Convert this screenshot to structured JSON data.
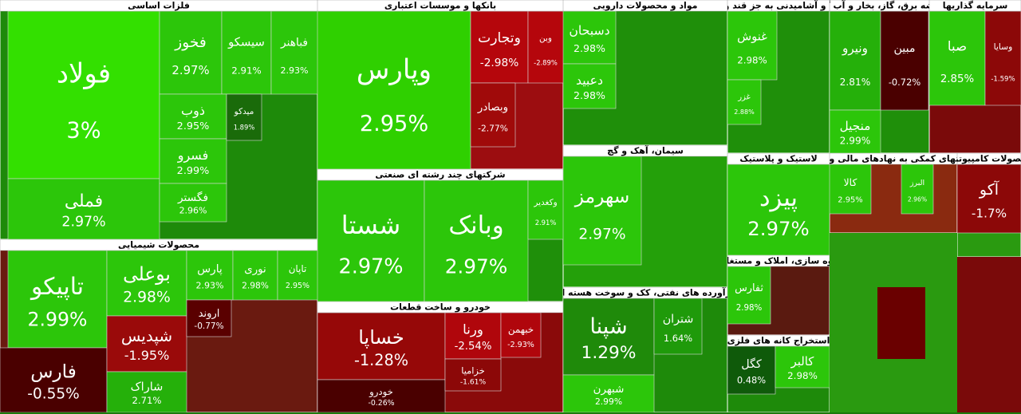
{
  "chart_data": {
    "type": "treemap",
    "sectors": [
      {
        "name": "فلزات اساسی",
        "tiles": [
          {
            "label": "فولاد",
            "value": 3,
            "value_label": "3%",
            "color": "#33e000"
          },
          {
            "label": "فملی",
            "value": 2.97,
            "value_label": "2.97%",
            "color": "#2cc60a"
          },
          {
            "label": "فخوز",
            "value": 2.97,
            "value_label": "2.97%",
            "color": "#2cc60a"
          },
          {
            "label": "سیسکو",
            "value": 2.91,
            "value_label": "2.91%",
            "color": "#2cc60a"
          },
          {
            "label": "فباهنر",
            "value": 2.93,
            "value_label": "2.93%",
            "color": "#2cc60a"
          },
          {
            "label": "ذوب",
            "value": 2.95,
            "value_label": "2.95%",
            "color": "#2cc60a"
          },
          {
            "label": "فسرو",
            "value": 2.99,
            "value_label": "2.99%",
            "color": "#2cc60a"
          },
          {
            "label": "فگستر",
            "value": 2.96,
            "value_label": "2.96%",
            "color": "#2cc60a"
          },
          {
            "label": "میدکو",
            "value": 1.89,
            "value_label": "1.89%",
            "color": "#1a6b0a"
          }
        ]
      },
      {
        "name": "محصولات شیمیایی",
        "tiles": [
          {
            "label": "تاپیکو",
            "value": 2.99,
            "value_label": "2.99%",
            "color": "#2cc60a"
          },
          {
            "label": "فارس",
            "value": -0.55,
            "value_label": "-0.55%",
            "color": "#4a0000"
          },
          {
            "label": "بوعلی",
            "value": 2.98,
            "value_label": "2.98%",
            "color": "#2cc60a"
          },
          {
            "label": "شپدیس",
            "value": -1.95,
            "value_label": "-1.95%",
            "color": "#9a0a0a"
          },
          {
            "label": "شاراک",
            "value": 2.71,
            "value_label": "2.71%",
            "color": "#25b00a"
          },
          {
            "label": "پارس",
            "value": 2.93,
            "value_label": "2.93%",
            "color": "#2cc60a"
          },
          {
            "label": "نوری",
            "value": 2.98,
            "value_label": "2.98%",
            "color": "#2cc60a"
          },
          {
            "label": "تاپان",
            "value": 2.95,
            "value_label": "2.95%",
            "color": "#2cc60a"
          },
          {
            "label": "اروند",
            "value": -0.77,
            "value_label": "-0.77%",
            "color": "#5a0000"
          }
        ]
      },
      {
        "name": "بانکها و موسسات اعتباری",
        "tiles": [
          {
            "label": "وپارس",
            "value": 2.95,
            "value_label": "2.95%",
            "color": "#2fd000"
          },
          {
            "label": "وتجارت",
            "value": -2.98,
            "value_label": "-2.98%",
            "color": "#b5060c"
          },
          {
            "label": "وبن",
            "value": -2.89,
            "value_label": "-2.89%",
            "color": "#b5060c"
          },
          {
            "label": "وبصادر",
            "value": -2.77,
            "value_label": "-2.77%",
            "color": "#a00a0a"
          }
        ]
      },
      {
        "name": "شرکتهای چند رشته ای صنعتی",
        "tiles": [
          {
            "label": "شستا",
            "value": 2.97,
            "value_label": "2.97%",
            "color": "#2cc60a"
          },
          {
            "label": "وبانک",
            "value": 2.97,
            "value_label": "2.97%",
            "color": "#2cc60a"
          },
          {
            "label": "وکغدیر",
            "value": 2.91,
            "value_label": "2.91%",
            "color": "#2cc60a"
          }
        ]
      },
      {
        "name": "خودرو و ساخت قطعات",
        "tiles": [
          {
            "label": "خساپا",
            "value": -1.28,
            "value_label": "-1.28%",
            "color": "#960808"
          },
          {
            "label": "خودرو",
            "value": -0.26,
            "value_label": "-0.26%",
            "color": "#4a0000"
          },
          {
            "label": "ورنا",
            "value": -2.54,
            "value_label": "-2.54%",
            "color": "#b0060c"
          },
          {
            "label": "خبهمن",
            "value": -2.93,
            "value_label": "-2.93%",
            "color": "#b0060c"
          },
          {
            "label": "خزامیا",
            "value": -1.61,
            "value_label": "-1.61%",
            "color": "#8c0808"
          }
        ]
      },
      {
        "name": "مواد و محصولات دارویی",
        "tiles": [
          {
            "label": "دسبحان",
            "value": 2.98,
            "value_label": "2.98%",
            "color": "#2cc60a"
          },
          {
            "label": "دعبید",
            "value": 2.98,
            "value_label": "2.98%",
            "color": "#2cc60a"
          }
        ]
      },
      {
        "name": "سیمان، آهک و گچ",
        "tiles": [
          {
            "label": "سهرمز",
            "value": 2.97,
            "value_label": "2.97%",
            "color": "#2cc60a"
          }
        ]
      },
      {
        "name": "فرآورده های نفتی، کک و سوخت هسته ای",
        "tiles": [
          {
            "label": "شپنا",
            "value": 1.29,
            "value_label": "1.29%",
            "color": "#1f8a0a"
          },
          {
            "label": "شبهرن",
            "value": 2.99,
            "value_label": "2.99%",
            "color": "#2cc60a"
          },
          {
            "label": "شتران",
            "value": 1.64,
            "value_label": "1.64%",
            "color": "#1f9a0a"
          }
        ]
      },
      {
        "name": "غذایی و آشامیدنی به جز قند و شکر",
        "tiles": [
          {
            "label": "غنوش",
            "value": 2.98,
            "value_label": "2.98%",
            "color": "#2cc60a"
          },
          {
            "label": "غزر",
            "value": 2.88,
            "value_label": "2.88%",
            "color": "#2cc60a"
          }
        ]
      },
      {
        "name": "لاستیک و پلاستیک",
        "tiles": [
          {
            "label": "پیزد",
            "value": 2.97,
            "value_label": "2.97%",
            "color": "#2cc60a"
          }
        ]
      },
      {
        "name": "انبوه سازی، املاک و مستغلات",
        "tiles": [
          {
            "label": "ثفارس",
            "value": 2.98,
            "value_label": "2.98%",
            "color": "#2cc60a"
          }
        ]
      },
      {
        "name": "استخراج کانه های فلزی",
        "tiles": [
          {
            "label": "کگل",
            "value": 0.48,
            "value_label": "0.48%",
            "color": "#0f5a0a"
          },
          {
            "label": "کالبر",
            "value": 2.98,
            "value_label": "2.98%",
            "color": "#2cc60a"
          }
        ]
      },
      {
        "name": "عرضه برق، گاز، بخار و آب گرم",
        "tiles": [
          {
            "label": "ونیرو",
            "value": 2.81,
            "value_label": "2.81%",
            "color": "#25b00a"
          },
          {
            "label": "مبین",
            "value": -0.72,
            "value_label": "-0.72%",
            "color": "#4a0000"
          },
          {
            "label": "منجیل",
            "value": 2.99,
            "value_label": "2.99%",
            "color": "#2cc60a"
          }
        ]
      },
      {
        "name": "سرمایه گذاریها",
        "tiles": [
          {
            "label": "صبا",
            "value": 2.85,
            "value_label": "2.85%",
            "color": "#2cc60a"
          },
          {
            "label": "وسایا",
            "value": -1.59,
            "value_label": "-1.59%",
            "color": "#8c0808"
          }
        ]
      },
      {
        "name": "شرکتهای کمکی به نهادهای مالی واسط",
        "tiles": [
          {
            "label": "کالا",
            "value": 2.95,
            "value_label": "2.95%",
            "color": "#2cc60a"
          },
          {
            "label": "البرز",
            "value": 2.96,
            "value_label": "2.96%",
            "color": "#2cc60a"
          }
        ]
      },
      {
        "name": "محصولات کامپیوتری",
        "tiles": [
          {
            "label": "آکو",
            "value": -1.7,
            "value_label": "-1.7%",
            "color": "#8c0808"
          }
        ]
      }
    ]
  }
}
